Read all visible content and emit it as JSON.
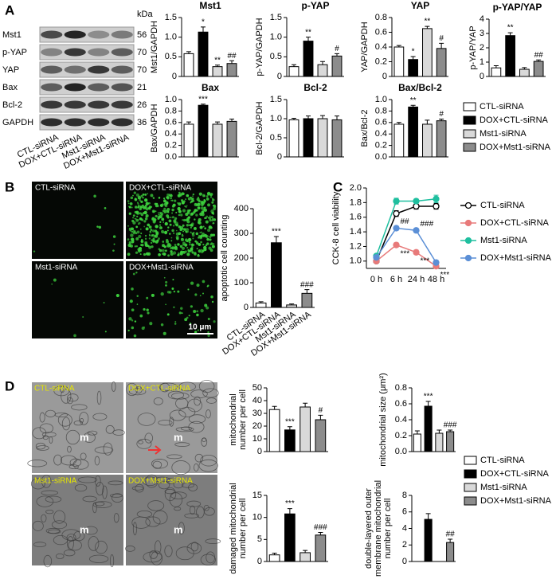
{
  "panel_labels": [
    "A",
    "B",
    "C",
    "D"
  ],
  "legend": {
    "names": [
      "CTL-siRNA",
      "DOX+CTL-siRNA",
      "Mst1-siRNA",
      "DOX+Mst1-siRNA"
    ],
    "colors": [
      "#ffffff",
      "#000000",
      "#d9d9d9",
      "#8c8c8c"
    ]
  },
  "blot": {
    "unit": "kDa",
    "proteins": [
      "Mst1",
      "p-YAP",
      "YAP",
      "Bax",
      "Bcl-2",
      "GAPDH"
    ],
    "sizes": [
      56,
      70,
      70,
      21,
      26,
      36
    ],
    "lanes": [
      "CTL-siRNA",
      "DOX+CTL-siRNA",
      "Mst1-siRNA",
      "DOX+Mst1-siRNA"
    ]
  },
  "fluorescence": {
    "labels": [
      "CTL-siRNA",
      "DOX+CTL-siRNA",
      "Mst1-siRNA",
      "DOX+Mst1-siRNA"
    ],
    "scale_bar": "10 μm"
  },
  "micrographs": {
    "labels": [
      "CTL-siRNA",
      "DOX+CTL-siRNA",
      "Mst1-siRNA",
      "DOX+Mst1-siRNA"
    ],
    "marker": "m"
  },
  "chart_data": [
    {
      "type": "bar",
      "title": "Mst1",
      "ylabel": [
        "Mst1/GAPDH"
      ],
      "values": [
        0.58,
        1.13,
        0.25,
        0.33
      ],
      "errors": [
        0.05,
        0.13,
        0.04,
        0.07
      ],
      "annotations": [
        null,
        "*",
        "**",
        "##"
      ],
      "ylim": [
        0,
        1.5
      ],
      "yticks": [
        0,
        0.5,
        {
          "value": 1,
          "label": "1.0"
        },
        1.5
      ]
    },
    {
      "type": "bar",
      "title": "p-YAP",
      "ylabel": [
        "p-YAP/GAPDH"
      ],
      "values": [
        0.25,
        0.9,
        0.3,
        0.52
      ],
      "errors": [
        0.05,
        0.1,
        0.08,
        0.06
      ],
      "annotations": [
        null,
        "**",
        null,
        "#"
      ],
      "ylim": [
        0,
        1.5
      ],
      "yticks": [
        0,
        0.5,
        {
          "value": 1,
          "label": "1.0"
        },
        1.5
      ]
    },
    {
      "type": "bar",
      "title": "YAP",
      "ylabel": [
        "YAP/GAPDH"
      ],
      "values": [
        0.4,
        0.23,
        0.65,
        0.38
      ],
      "errors": [
        0.02,
        0.04,
        0.03,
        0.07
      ],
      "annotations": [
        null,
        "*",
        "**",
        "#"
      ],
      "ylim": [
        0,
        0.8
      ],
      "yticks": [
        0,
        0.2,
        0.4,
        0.6,
        0.8
      ]
    },
    {
      "type": "bar",
      "title": "p-YAP/YAP",
      "ylabel": [
        "p-YAP/YAP"
      ],
      "values": [
        0.6,
        2.85,
        0.5,
        1.05
      ],
      "errors": [
        0.15,
        0.2,
        0.12,
        0.1
      ],
      "annotations": [
        null,
        "**",
        null,
        "##"
      ],
      "ylim": [
        0,
        4
      ],
      "yticks": [
        0,
        1,
        2,
        3,
        4
      ]
    },
    {
      "type": "bar",
      "title": "Bax",
      "ylabel": [
        "Bax/GAPDH"
      ],
      "values": [
        0.57,
        0.9,
        0.57,
        0.62
      ],
      "errors": [
        0.04,
        0.02,
        0.04,
        0.04
      ],
      "annotations": [
        null,
        "***",
        null,
        null
      ],
      "ylim": [
        0,
        1
      ],
      "yticks": [
        {
          "value": 0,
          "label": "0.0"
        },
        0.2,
        0.4,
        0.6,
        0.8,
        {
          "value": 1,
          "label": "1.0"
        }
      ]
    },
    {
      "type": "bar",
      "title": "Bcl-2",
      "ylabel": [
        "Bcl-2/GAPDH"
      ],
      "values": [
        0.97,
        1.0,
        1.0,
        0.97
      ],
      "errors": [
        0.04,
        0.07,
        0.08,
        0.1
      ],
      "annotations": [
        null,
        null,
        null,
        null
      ],
      "ylim": [
        0,
        1.5
      ],
      "yticks": [
        0,
        0.5,
        {
          "value": 1,
          "label": "1.0"
        },
        1.5
      ]
    },
    {
      "type": "bar",
      "title": "Bax/Bcl-2",
      "ylabel": [
        "Bax/Bcl-2"
      ],
      "values": [
        0.57,
        0.87,
        0.57,
        0.63
      ],
      "errors": [
        0.03,
        0.03,
        0.07,
        0.03
      ],
      "annotations": [
        null,
        "**",
        null,
        "#"
      ],
      "ylim": [
        0,
        1
      ],
      "yticks": [
        {
          "value": 0,
          "label": "0.0"
        },
        0.2,
        0.4,
        0.6,
        0.8,
        {
          "value": 1,
          "label": "1.0"
        }
      ]
    },
    {
      "type": "bar",
      "ylabel": [
        "apoptotic cell counting"
      ],
      "categories": [
        "CTL-siRNA",
        "DOX+CTL-siRNA",
        "Mst1-siRNA",
        "DOX+Mst1-siRNA"
      ],
      "values": [
        18,
        262,
        10,
        57
      ],
      "errors": [
        5,
        25,
        4,
        15
      ],
      "annotations": [
        null,
        "***",
        null,
        "###"
      ],
      "ylim": [
        0,
        400
      ],
      "yticks": [
        0,
        100,
        200,
        300,
        400
      ]
    },
    {
      "type": "line",
      "ylabel": [
        "CCK-8 cell viability"
      ],
      "categories": [
        "0 h",
        "6 h",
        "24 h",
        "48 h"
      ],
      "ylim": [
        0.9,
        2.0
      ],
      "yticks": [
        {
          "value": 1,
          "label": "1.0"
        },
        1.2,
        1.4,
        1.6,
        1.8,
        {
          "value": 2,
          "label": "2.0"
        }
      ],
      "series": [
        {
          "name": "CTL-siRNA",
          "color": "#000000",
          "marker_fill": "#ffffff",
          "values": [
            1.0,
            1.65,
            1.75,
            1.75
          ],
          "errors": [
            0.02,
            0.04,
            0.04,
            0.04
          ]
        },
        {
          "name": "DOX+CTL-siRNA",
          "color": "#e87a7a",
          "marker_fill": "#e87a7a",
          "values": [
            1.0,
            1.22,
            1.12,
            0.93
          ],
          "errors": [
            0.02,
            0.03,
            0.03,
            0.03
          ],
          "annotations": [
            null,
            "***",
            "***",
            "***"
          ]
        },
        {
          "name": "Mst1-siRNA",
          "color": "#1fbf9f",
          "marker_fill": "#1fbf9f",
          "values": [
            1.07,
            1.82,
            1.82,
            1.85
          ],
          "errors": [
            0.02,
            0.04,
            0.03,
            0.05
          ]
        },
        {
          "name": "DOX+Mst1-siRNA",
          "color": "#5b8fd6",
          "marker_fill": "#5b8fd6",
          "values": [
            1.05,
            1.45,
            1.42,
            0.98
          ],
          "errors": [
            0.02,
            0.03,
            0.03,
            0.03
          ],
          "annotations": [
            null,
            "##",
            "###",
            null
          ]
        }
      ]
    },
    {
      "type": "bar",
      "ylabel": [
        "mitochondrial",
        "number per cell"
      ],
      "values": [
        33,
        17,
        35,
        25
      ],
      "errors": [
        2.5,
        2.5,
        3,
        3.5
      ],
      "annotations": [
        null,
        "***",
        null,
        "#"
      ],
      "ylim": [
        0,
        50
      ],
      "yticks": [
        0,
        10,
        20,
        30,
        40,
        50
      ]
    },
    {
      "type": "bar",
      "ylabel": [
        "mitochondrial size (μm²)"
      ],
      "values": [
        0.22,
        0.57,
        0.23,
        0.25
      ],
      "errors": [
        0.04,
        0.06,
        0.04,
        0.02
      ],
      "annotations": [
        null,
        "***",
        null,
        "###"
      ],
      "ylim": [
        0,
        0.8
      ],
      "yticks": [
        {
          "value": 0,
          "label": "0.0"
        },
        0.2,
        0.4,
        0.6,
        0.8
      ]
    },
    {
      "type": "bar",
      "ylabel": [
        "damaged mitochondrial",
        "number per cell"
      ],
      "values": [
        1.5,
        10.8,
        2.0,
        6.0
      ],
      "errors": [
        0.4,
        1.2,
        0.5,
        0.6
      ],
      "annotations": [
        null,
        "***",
        null,
        "###"
      ],
      "ylim": [
        0,
        15
      ],
      "yticks": [
        0,
        5,
        10,
        15
      ]
    },
    {
      "type": "bar",
      "ylabel": [
        "double-layered outer",
        "membrane mitochondrial",
        "number per cell"
      ],
      "values": [
        null,
        5.1,
        null,
        2.3
      ],
      "errors": [
        null,
        0.7,
        null,
        0.4
      ],
      "annotations": [
        null,
        null,
        null,
        "##"
      ],
      "ylim": [
        0,
        8
      ],
      "yticks": [
        0,
        2,
        4,
        6,
        8
      ]
    }
  ]
}
